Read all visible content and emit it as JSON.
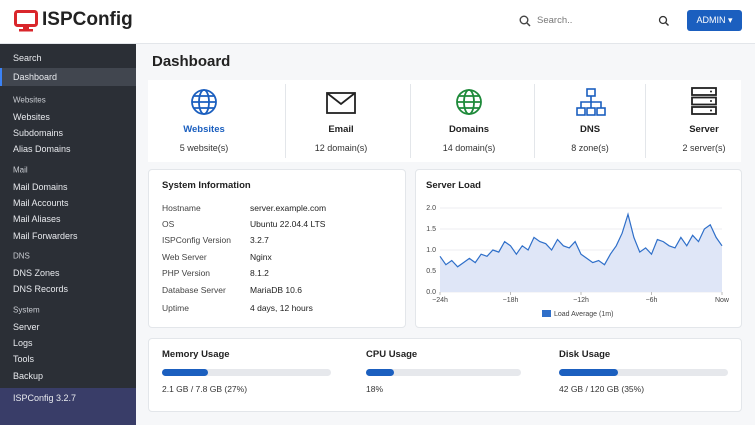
{
  "header": {
    "logo": "ISPConfig",
    "search_placeholder": "Search..",
    "user_button": "ADMIN"
  },
  "sidebar": {
    "top": [
      "Search",
      "Dashboard"
    ],
    "sections": [
      {
        "title": "Websites",
        "items": [
          "Websites",
          "Subdomains",
          "Alias Domains"
        ]
      },
      {
        "title": "Mail",
        "items": [
          "Mail Domains",
          "Mail Accounts",
          "Mail Aliases",
          "Mail Forwarders"
        ]
      },
      {
        "title": "DNS",
        "items": [
          "DNS Zones",
          "DNS Records"
        ]
      },
      {
        "title": "System",
        "items": [
          "Server",
          "Logs",
          "Tools",
          "Backup"
        ]
      }
    ],
    "footer": "ISPConfig 3.2.7"
  },
  "page_title": "Dashboard",
  "tiles": [
    {
      "label": "Websites",
      "count": "5 website(s)"
    },
    {
      "label": "Email",
      "count": "12 domain(s)"
    },
    {
      "label": "Domains",
      "count": "14 domain(s)"
    },
    {
      "label": "DNS",
      "count": "8 zone(s)"
    },
    {
      "label": "Server",
      "count": "2 server(s)"
    }
  ],
  "system_info": {
    "title": "System Information",
    "rows": [
      [
        "Hostname",
        "server.example.com"
      ],
      [
        "OS",
        "Ubuntu 22.04.4 LTS"
      ],
      [
        "ISPConfig Version",
        "3.2.7"
      ],
      [
        "Web Server",
        "Nginx"
      ],
      [
        "PHP Version",
        "8.1.2"
      ],
      [
        "Database Server",
        "MariaDB 10.6"
      ],
      [
        "Uptime",
        "4 days, 12 hours"
      ]
    ]
  },
  "chart_data": {
    "type": "area",
    "title": "Server Load",
    "x": [
      -24,
      -23.5,
      -23,
      -22.5,
      -22,
      -21.5,
      -21,
      -20.5,
      -20,
      -19.5,
      -19,
      -18.5,
      -18,
      -17.5,
      -17,
      -16.5,
      -16,
      -15.5,
      -15,
      -14.5,
      -14,
      -13.5,
      -13,
      -12.5,
      -12,
      -11.5,
      -11,
      -10.5,
      -10,
      -9.5,
      -9,
      -8.5,
      -8,
      -7.5,
      -7,
      -6.5,
      -6,
      -5.5,
      -5,
      -4.5,
      -4,
      -3.5,
      -3,
      -2.5,
      -2,
      -1.5,
      -1,
      -0.5,
      0
    ],
    "series": [
      {
        "name": "Load Average (1m)",
        "color": "#2f6fc9",
        "values": [
          0.85,
          0.65,
          0.75,
          0.6,
          0.7,
          0.8,
          0.7,
          0.9,
          0.85,
          1.0,
          0.95,
          1.2,
          1.1,
          0.9,
          1.1,
          1.0,
          1.3,
          1.2,
          1.15,
          1.0,
          1.25,
          1.1,
          1.05,
          1.2,
          0.9,
          0.8,
          0.7,
          0.75,
          0.65,
          0.9,
          1.1,
          1.4,
          1.85,
          1.3,
          0.95,
          1.05,
          0.9,
          1.25,
          1.2,
          1.1,
          1.05,
          1.3,
          1.1,
          1.35,
          1.2,
          1.5,
          1.6,
          1.3,
          1.1
        ]
      }
    ],
    "xlim": [
      -24,
      0
    ],
    "xticks": [
      {
        "value": -24,
        "label": "−24h"
      },
      {
        "value": -18,
        "label": "−18h"
      },
      {
        "value": -12,
        "label": "−12h"
      },
      {
        "value": -6,
        "label": "−6h"
      },
      {
        "value": 0,
        "label": "Now"
      }
    ],
    "ylim": [
      0,
      2
    ],
    "yticks": [
      {
        "value": 0,
        "label": "0.0"
      },
      0.5,
      {
        "value": 1,
        "label": "1.0"
      },
      1.5,
      {
        "value": 2,
        "label": "2.0"
      }
    ],
    "grid": true,
    "legend": "bottom"
  },
  "usage": [
    {
      "title": "Memory Usage",
      "percent": 27,
      "detail": "2.1 GB / 7.8 GB (27%)"
    },
    {
      "title": "CPU Usage",
      "percent": 18,
      "detail": "18%"
    },
    {
      "title": "Disk Usage",
      "percent": 35,
      "detail": "42 GB / 120 GB (35%)"
    }
  ]
}
